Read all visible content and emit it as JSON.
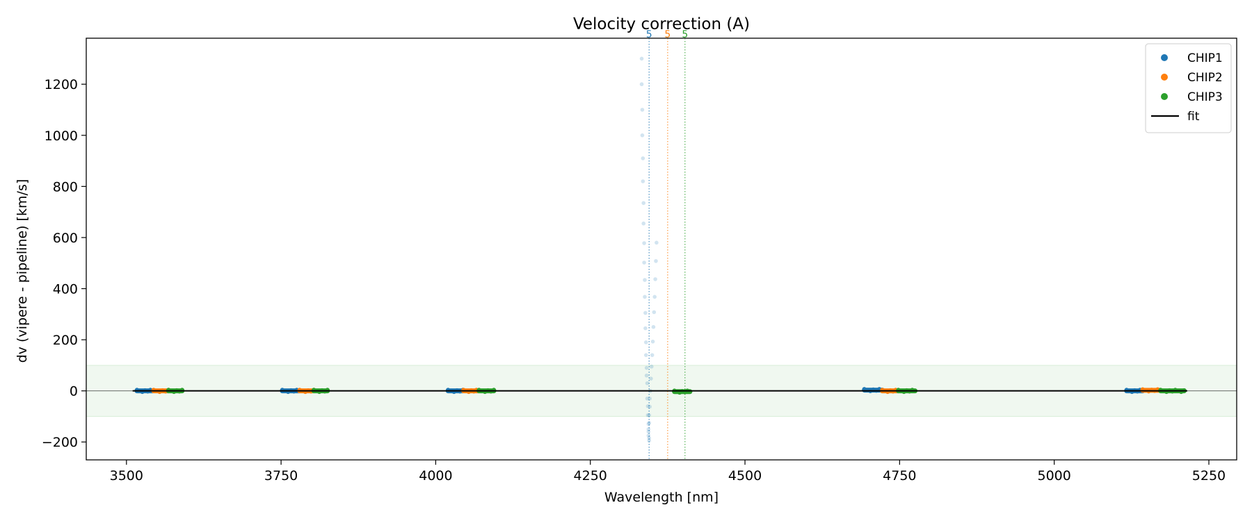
{
  "chart_data": {
    "type": "scatter",
    "title": "Velocity correction (A)",
    "xlabel": "Wavelength [nm]",
    "ylabel": "dv (vipere - pipeline) [km/s]",
    "xlim": [
      3435,
      5295
    ],
    "ylim": [
      -270,
      1380
    ],
    "xticks": [
      3500,
      3750,
      4000,
      4250,
      4500,
      4750,
      5000,
      5250
    ],
    "yticks": [
      -200,
      0,
      200,
      400,
      600,
      800,
      1000,
      1200
    ],
    "grid": false,
    "legend_position": "top-right",
    "band": {
      "lower": -100,
      "upper": 100,
      "color": "#2ca02c"
    },
    "zero_line": 0,
    "colors": {
      "CHIP1": "#1f77b4",
      "CHIP2": "#ff7f0e",
      "CHIP3": "#2ca02c",
      "fit": "#000000"
    },
    "legend": [
      {
        "label": "CHIP1",
        "kind": "dot",
        "color": "#1f77b4"
      },
      {
        "label": "CHIP2",
        "kind": "dot",
        "color": "#ff7f0e"
      },
      {
        "label": "CHIP3",
        "kind": "dot",
        "color": "#2ca02c"
      },
      {
        "label": "fit",
        "kind": "line",
        "color": "#000000"
      }
    ],
    "series": [
      {
        "name": "CHIP1",
        "color": "#1f77b4",
        "clusters": [
          [
            3517,
            3543,
            0
          ],
          [
            3752,
            3780,
            0
          ],
          [
            4020,
            4044,
            0
          ],
          [
            4693,
            4722,
            3
          ],
          [
            5117,
            5143,
            0
          ]
        ]
      },
      {
        "name": "CHIP2",
        "color": "#ff7f0e",
        "clusters": [
          [
            3544,
            3568,
            0
          ],
          [
            3780,
            3803,
            0
          ],
          [
            4045,
            4070,
            0
          ],
          [
            4722,
            4748,
            0
          ],
          [
            5143,
            5172,
            2
          ]
        ]
      },
      {
        "name": "CHIP3",
        "color": "#2ca02c",
        "clusters": [
          [
            3568,
            3590,
            0
          ],
          [
            3803,
            3825,
            0
          ],
          [
            4070,
            4094,
            0
          ],
          [
            4386,
            4411,
            -3
          ],
          [
            4748,
            4775,
            0
          ],
          [
            5172,
            5210,
            0
          ]
        ]
      }
    ],
    "outliers": {
      "color": "#1f77b4",
      "points": [
        [
          4333,
          1300
        ],
        [
          4333,
          1200
        ],
        [
          4334,
          1100
        ],
        [
          4334,
          1000
        ],
        [
          4335,
          910
        ],
        [
          4335,
          820
        ],
        [
          4336,
          735
        ],
        [
          4336,
          655
        ],
        [
          4337,
          578
        ],
        [
          4337,
          502
        ],
        [
          4338,
          434
        ],
        [
          4338,
          368
        ],
        [
          4339,
          305
        ],
        [
          4339,
          245
        ],
        [
          4340,
          190
        ],
        [
          4340,
          140
        ],
        [
          4341,
          90
        ],
        [
          4341,
          60
        ],
        [
          4342,
          30
        ],
        [
          4342,
          -30
        ],
        [
          4343,
          -60
        ],
        [
          4343,
          -95
        ],
        [
          4344,
          -130
        ],
        [
          4344,
          -160
        ],
        [
          4345,
          -185
        ],
        [
          4345,
          -195
        ],
        [
          4357,
          580
        ],
        [
          4356,
          508
        ],
        [
          4355,
          437
        ],
        [
          4354,
          368
        ],
        [
          4353,
          308
        ],
        [
          4352,
          250
        ],
        [
          4351,
          193
        ],
        [
          4350,
          140
        ],
        [
          4349,
          95
        ],
        [
          4348,
          48
        ],
        [
          4347,
          0
        ],
        [
          4346,
          -30
        ],
        [
          4346,
          -62
        ],
        [
          4345,
          -95
        ],
        [
          4345,
          -125
        ],
        [
          4344,
          -150
        ],
        [
          4344,
          -175
        ]
      ]
    },
    "fit": [
      [
        3510,
        0
      ],
      [
        5215,
        0
      ]
    ],
    "vlines": [
      {
        "x": 4345,
        "label": "5",
        "color": "#1f77b4"
      },
      {
        "x": 4375,
        "label": "5",
        "color": "#ff7f0e"
      },
      {
        "x": 4403,
        "label": "5",
        "color": "#2ca02c"
      }
    ]
  }
}
